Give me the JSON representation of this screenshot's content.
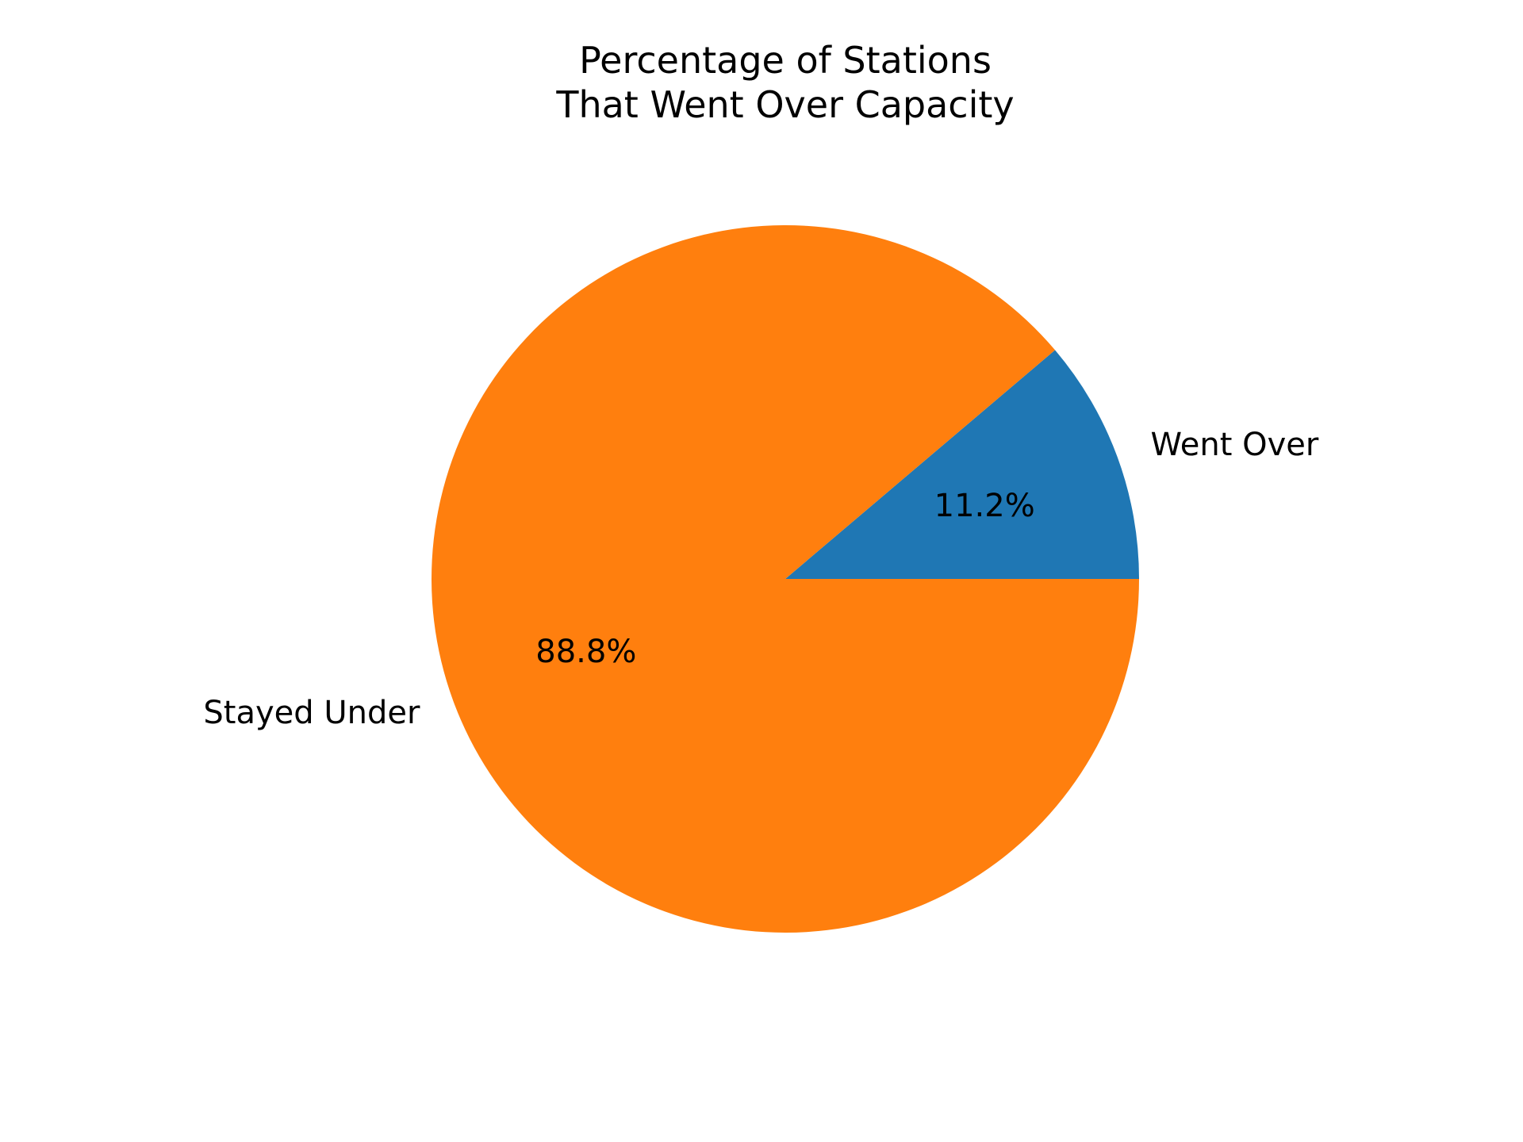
{
  "chart_data": {
    "type": "pie",
    "title": [
      "Percentage of Stations",
      "That Went Over Capacity"
    ],
    "slices": [
      {
        "label": "Went Over",
        "value": 11.2,
        "pct_label": "11.2%",
        "color": "#1f77b4"
      },
      {
        "label": "Stayed Under",
        "value": 88.8,
        "pct_label": "88.8%",
        "color": "#ff7f0e"
      }
    ],
    "start_angle": 0,
    "direction": "counterclockwise"
  }
}
